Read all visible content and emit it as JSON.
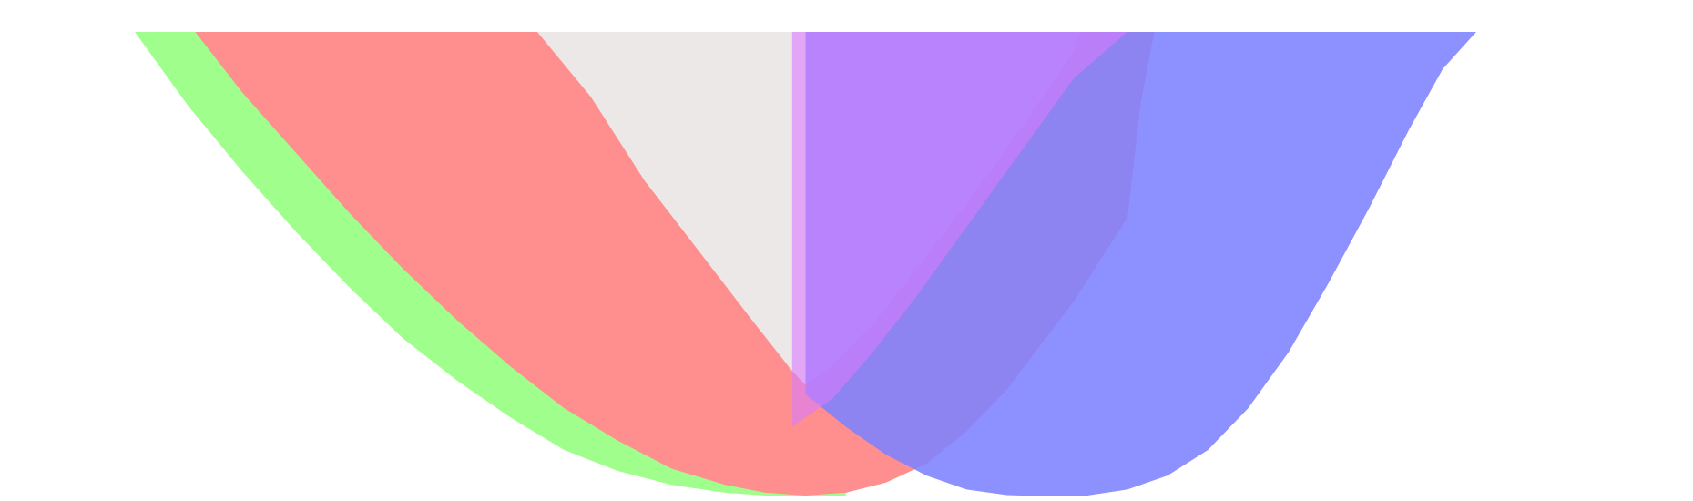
{
  "chart_data": {
    "type": "area",
    "title": "",
    "xlabel": "",
    "ylabel": "",
    "legend": "none",
    "grid": false,
    "xlim": [
      0,
      1
    ],
    "ylim": [
      0,
      1
    ],
    "series": [
      {
        "color": "#a0ff8c",
        "opacity": 1,
        "x": [
          0.0,
          0.04,
          0.08,
          0.12,
          0.16,
          0.2,
          0.24,
          0.28,
          0.32,
          0.36,
          0.4,
          0.44,
          0.47,
          0.5,
          0.53
        ],
        "upper": [
          1,
          1,
          1,
          1,
          1,
          1,
          1,
          1,
          1,
          1,
          1,
          1,
          1,
          1,
          1
        ],
        "lower": [
          1.0,
          0.84,
          0.7,
          0.57,
          0.45,
          0.34,
          0.25,
          0.17,
          0.1,
          0.055,
          0.025,
          0.008,
          0.002,
          0.0,
          0.0
        ]
      },
      {
        "color": "#ff8e8e",
        "opacity": 1,
        "x": [
          0.045,
          0.08,
          0.12,
          0.16,
          0.2,
          0.24,
          0.28,
          0.32,
          0.36,
          0.4,
          0.44,
          0.47,
          0.5,
          0.53,
          0.56,
          0.59,
          0.62,
          0.65,
          0.7,
          0.74,
          0.75,
          0.76
        ],
        "upper": [
          1,
          1,
          1,
          1,
          1,
          1,
          1,
          1,
          1,
          1,
          1,
          1,
          1,
          1,
          1,
          1,
          1,
          1,
          1,
          1,
          1,
          1
        ],
        "lower": [
          1.0,
          0.87,
          0.74,
          0.61,
          0.49,
          0.38,
          0.28,
          0.19,
          0.12,
          0.06,
          0.025,
          0.008,
          0.002,
          0.008,
          0.03,
          0.07,
          0.14,
          0.23,
          0.42,
          0.6,
          0.85,
          1.0
        ]
      },
      {
        "color": "#ede8e8",
        "opacity": 1,
        "x": [
          0.3,
          0.34,
          0.38,
          0.42,
          0.46,
          0.49,
          0.5,
          0.52,
          0.55,
          0.58,
          0.62,
          0.66,
          0.7,
          0.705
        ],
        "upper": [
          1,
          1,
          1,
          1,
          1,
          1,
          1,
          1,
          1,
          1,
          1,
          1,
          1,
          1
        ],
        "lower": [
          1.0,
          0.86,
          0.68,
          0.53,
          0.38,
          0.27,
          0.24,
          0.28,
          0.37,
          0.48,
          0.63,
          0.79,
          0.96,
          1.0
        ]
      },
      {
        "color": "#7d82ff",
        "opacity": 0.88,
        "x": [
          0.5,
          0.53,
          0.56,
          0.59,
          0.62,
          0.65,
          0.68,
          0.71,
          0.74,
          0.77,
          0.8,
          0.83,
          0.86,
          0.89,
          0.92,
          0.95,
          0.975,
          1.0
        ],
        "upper": [
          1,
          1,
          1,
          1,
          1,
          1,
          1,
          1,
          1,
          1,
          1,
          1,
          1,
          1,
          1,
          1,
          1,
          1
        ],
        "lower": [
          0.22,
          0.15,
          0.09,
          0.045,
          0.015,
          0.003,
          0.0,
          0.002,
          0.015,
          0.045,
          0.1,
          0.19,
          0.31,
          0.46,
          0.62,
          0.79,
          0.92,
          1.0
        ]
      },
      {
        "color": "#d97bff",
        "opacity": 0.6,
        "x": [
          0.49,
          0.52,
          0.55,
          0.58,
          0.62,
          0.66,
          0.7,
          0.74
        ],
        "upper": [
          1,
          1,
          1,
          1,
          1,
          1,
          1,
          1
        ],
        "lower": [
          0.15,
          0.21,
          0.31,
          0.42,
          0.58,
          0.74,
          0.9,
          1.0
        ]
      }
    ]
  }
}
